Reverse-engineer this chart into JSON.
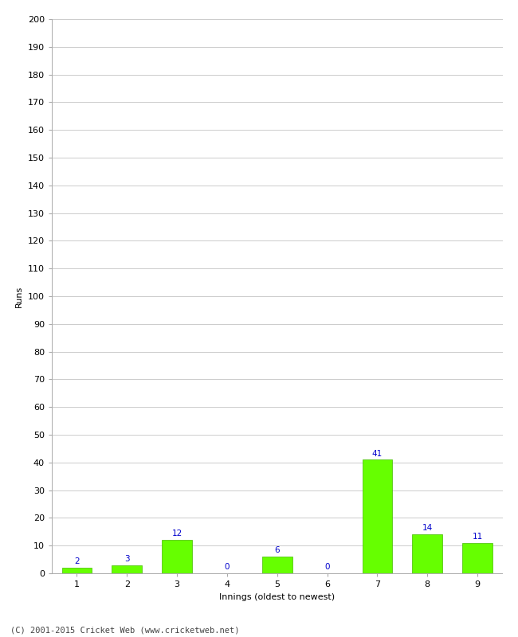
{
  "categories": [
    "1",
    "2",
    "3",
    "4",
    "5",
    "6",
    "7",
    "8",
    "9"
  ],
  "values": [
    2,
    3,
    12,
    0,
    6,
    0,
    41,
    14,
    11
  ],
  "bar_color": "#66ff00",
  "bar_edge_color": "#44bb00",
  "label_color": "#0000cc",
  "xlabel": "Innings (oldest to newest)",
  "ylabel": "Runs",
  "ylim": [
    0,
    200
  ],
  "yticks": [
    0,
    10,
    20,
    30,
    40,
    50,
    60,
    70,
    80,
    90,
    100,
    110,
    120,
    130,
    140,
    150,
    160,
    170,
    180,
    190,
    200
  ],
  "footer": "(C) 2001-2015 Cricket Web (www.cricketweb.net)",
  "background_color": "#ffffff",
  "grid_color": "#cccccc",
  "label_fontsize": 7.5,
  "tick_fontsize": 8,
  "axis_label_fontsize": 8,
  "footer_fontsize": 7.5
}
